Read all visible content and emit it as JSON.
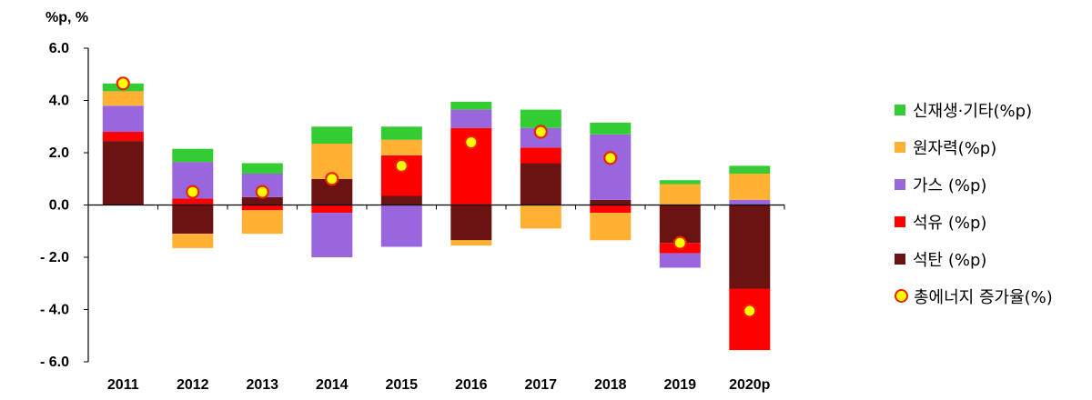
{
  "chart_data": {
    "type": "bar",
    "stacked": true,
    "unit_label": "%p, %",
    "categories": [
      "2011",
      "2012",
      "2013",
      "2014",
      "2015",
      "2016",
      "2017",
      "2018",
      "2019",
      "2020p"
    ],
    "ylim": [
      -6.0,
      6.0
    ],
    "yticks": [
      "6.0",
      "4.0",
      "2.0",
      "0.0",
      "- 2.0",
      "- 4.0",
      "- 6.0"
    ],
    "ytick_values": [
      6,
      4,
      2,
      0,
      -2,
      -4,
      -6
    ],
    "legend_position": "right",
    "series": [
      {
        "name": "석탄 (%p)",
        "color": "#6b1212",
        "values": [
          2.45,
          -1.1,
          0.3,
          1.0,
          0.35,
          -1.35,
          1.6,
          0.2,
          -1.45,
          -3.2
        ]
      },
      {
        "name": "석유 (%p)",
        "color": "#ff0000",
        "values": [
          0.35,
          0.25,
          -0.2,
          -0.3,
          1.55,
          2.95,
          0.6,
          -0.3,
          -0.4,
          -2.35
        ]
      },
      {
        "name": "가스 (%p)",
        "color": "#9966dd",
        "values": [
          1.0,
          1.4,
          0.9,
          -1.7,
          -1.6,
          0.7,
          0.75,
          2.5,
          -0.55,
          0.2
        ]
      },
      {
        "name": "원자력(%p)",
        "color": "#ffb133",
        "values": [
          0.55,
          -0.55,
          -0.9,
          1.35,
          0.6,
          -0.2,
          -0.9,
          -1.05,
          0.8,
          1.0
        ]
      },
      {
        "name": "신재생·기타(%p)",
        "color": "#33cc33",
        "values": [
          0.3,
          0.5,
          0.4,
          0.65,
          0.5,
          0.3,
          0.7,
          0.45,
          0.15,
          0.3
        ]
      }
    ],
    "overlay": {
      "name": "총에너지 증가율(%)",
      "type": "scatter",
      "values": [
        4.65,
        0.5,
        0.5,
        1.0,
        1.5,
        2.4,
        2.8,
        1.8,
        -1.45,
        -4.05
      ]
    },
    "legend_order": [
      "신재생·기타(%p)",
      "원자력(%p)",
      "가스 (%p)",
      "석유 (%p)",
      "석탄 (%p)",
      "총에너지 증가율(%)"
    ]
  }
}
